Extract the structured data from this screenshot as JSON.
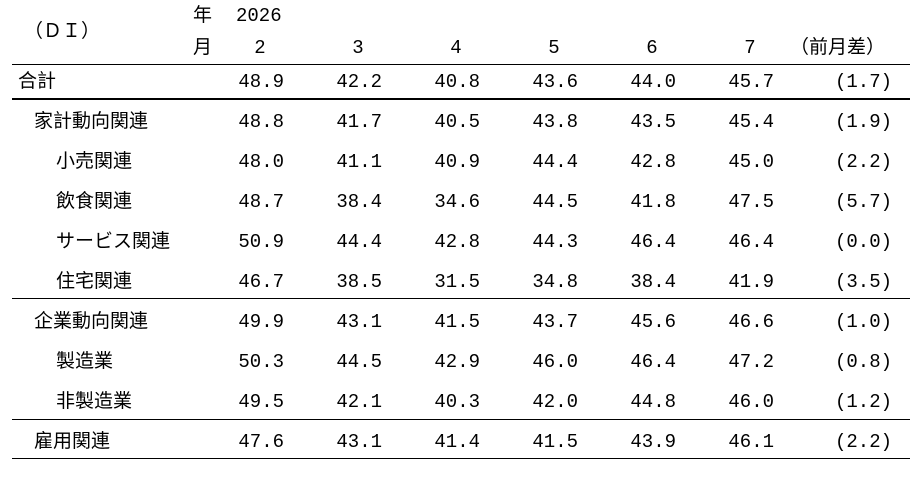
{
  "header": {
    "unit_label": "（ＤＩ）",
    "year_label": "年",
    "month_label": "月",
    "year_value": "2026",
    "months": [
      "2",
      "3",
      "4",
      "5",
      "6",
      "7"
    ],
    "diff_label": "（前月差）"
  },
  "rows": [
    {
      "label": "合計",
      "values": [
        "48.9",
        "42.2",
        "40.8",
        "43.6",
        "44.0",
        "45.7"
      ],
      "diff": "(1.7)"
    },
    {
      "label": "家計動向関連",
      "values": [
        "48.8",
        "41.7",
        "40.5",
        "43.8",
        "43.5",
        "45.4"
      ],
      "diff": "(1.9)"
    },
    {
      "label": "小売関連",
      "values": [
        "48.0",
        "41.1",
        "40.9",
        "44.4",
        "42.8",
        "45.0"
      ],
      "diff": "(2.2)"
    },
    {
      "label": "飲食関連",
      "values": [
        "48.7",
        "38.4",
        "34.6",
        "44.5",
        "41.8",
        "47.5"
      ],
      "diff": "(5.7)"
    },
    {
      "label": "サービス関連",
      "values": [
        "50.9",
        "44.4",
        "42.8",
        "44.3",
        "46.4",
        "46.4"
      ],
      "diff": "(0.0)"
    },
    {
      "label": "住宅関連",
      "values": [
        "46.7",
        "38.5",
        "31.5",
        "34.8",
        "38.4",
        "41.9"
      ],
      "diff": "(3.5)"
    },
    {
      "label": "企業動向関連",
      "values": [
        "49.9",
        "43.1",
        "41.5",
        "43.7",
        "45.6",
        "46.6"
      ],
      "diff": "(1.0)"
    },
    {
      "label": "製造業",
      "values": [
        "50.3",
        "44.5",
        "42.9",
        "46.0",
        "46.4",
        "47.2"
      ],
      "diff": "(0.8)"
    },
    {
      "label": "非製造業",
      "values": [
        "49.5",
        "42.1",
        "40.3",
        "42.0",
        "44.8",
        "46.0"
      ],
      "diff": "(1.2)"
    },
    {
      "label": "雇用関連",
      "values": [
        "47.6",
        "43.1",
        "41.4",
        "41.5",
        "43.9",
        "46.1"
      ],
      "diff": "(2.2)"
    }
  ]
}
